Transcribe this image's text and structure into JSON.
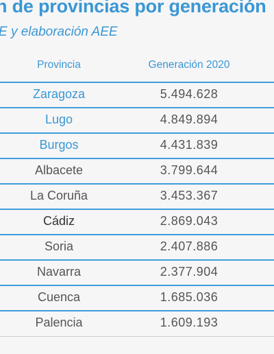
{
  "title": "n de provincias por generación",
  "subtitle": "E y elaboración AEE",
  "table": {
    "headers": {
      "provincia": "Provincia",
      "generacion": "Generación 2020"
    },
    "rows": [
      {
        "provincia": "Zaragoza",
        "generacion": "5.494.628",
        "highlight": "blue"
      },
      {
        "provincia": "Lugo",
        "generacion": "4.849.894",
        "highlight": "blue"
      },
      {
        "provincia": "Burgos",
        "generacion": "4.431.839",
        "highlight": "blue"
      },
      {
        "provincia": "Albacete",
        "generacion": "3.799.644",
        "highlight": "none"
      },
      {
        "provincia": "La Coruña",
        "generacion": "3.453.367",
        "highlight": "none"
      },
      {
        "provincia": "Cádiz",
        "generacion": "2.869.043",
        "highlight": "dark"
      },
      {
        "provincia": "Soria",
        "generacion": "2.407.886",
        "highlight": "none"
      },
      {
        "provincia": "Navarra",
        "generacion": "2.377.904",
        "highlight": "none"
      },
      {
        "provincia": "Cuenca",
        "generacion": "1.685.036",
        "highlight": "none"
      },
      {
        "provincia": "Palencia",
        "generacion": "1.609.193",
        "highlight": "none"
      }
    ]
  },
  "colors": {
    "accent": "#3a97d4",
    "rule": "#3e9ddd",
    "text": "#555555",
    "text_dark": "#333333",
    "background": "#f6f6f6"
  }
}
